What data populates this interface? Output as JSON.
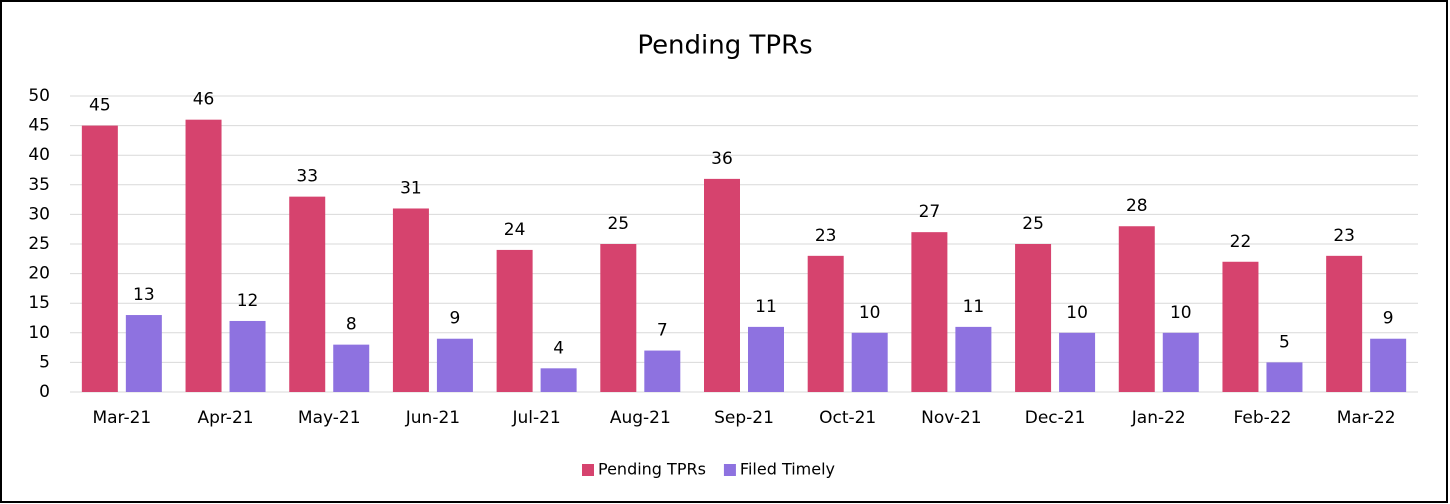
{
  "chart_data": {
    "type": "bar",
    "title": "Pending TPRs",
    "categories": [
      "Mar-21",
      "Apr-21",
      "May-21",
      "Jun-21",
      "Jul-21",
      "Aug-21",
      "Sep-21",
      "Oct-21",
      "Nov-21",
      "Dec-21",
      "Jan-22",
      "Feb-22",
      "Mar-22"
    ],
    "series": [
      {
        "name": "Pending TPRs",
        "color": "#d6436e",
        "values": [
          45,
          46,
          33,
          31,
          24,
          25,
          36,
          23,
          27,
          25,
          28,
          22,
          23
        ]
      },
      {
        "name": "Filed Timely",
        "color": "#8e72e0",
        "values": [
          13,
          12,
          8,
          9,
          4,
          7,
          11,
          10,
          11,
          10,
          10,
          5,
          9
        ]
      }
    ],
    "ylim": [
      0,
      50
    ],
    "yticks": [
      0,
      5,
      10,
      15,
      20,
      25,
      30,
      35,
      40,
      45,
      50
    ],
    "grid": true,
    "legend": "bottom"
  }
}
